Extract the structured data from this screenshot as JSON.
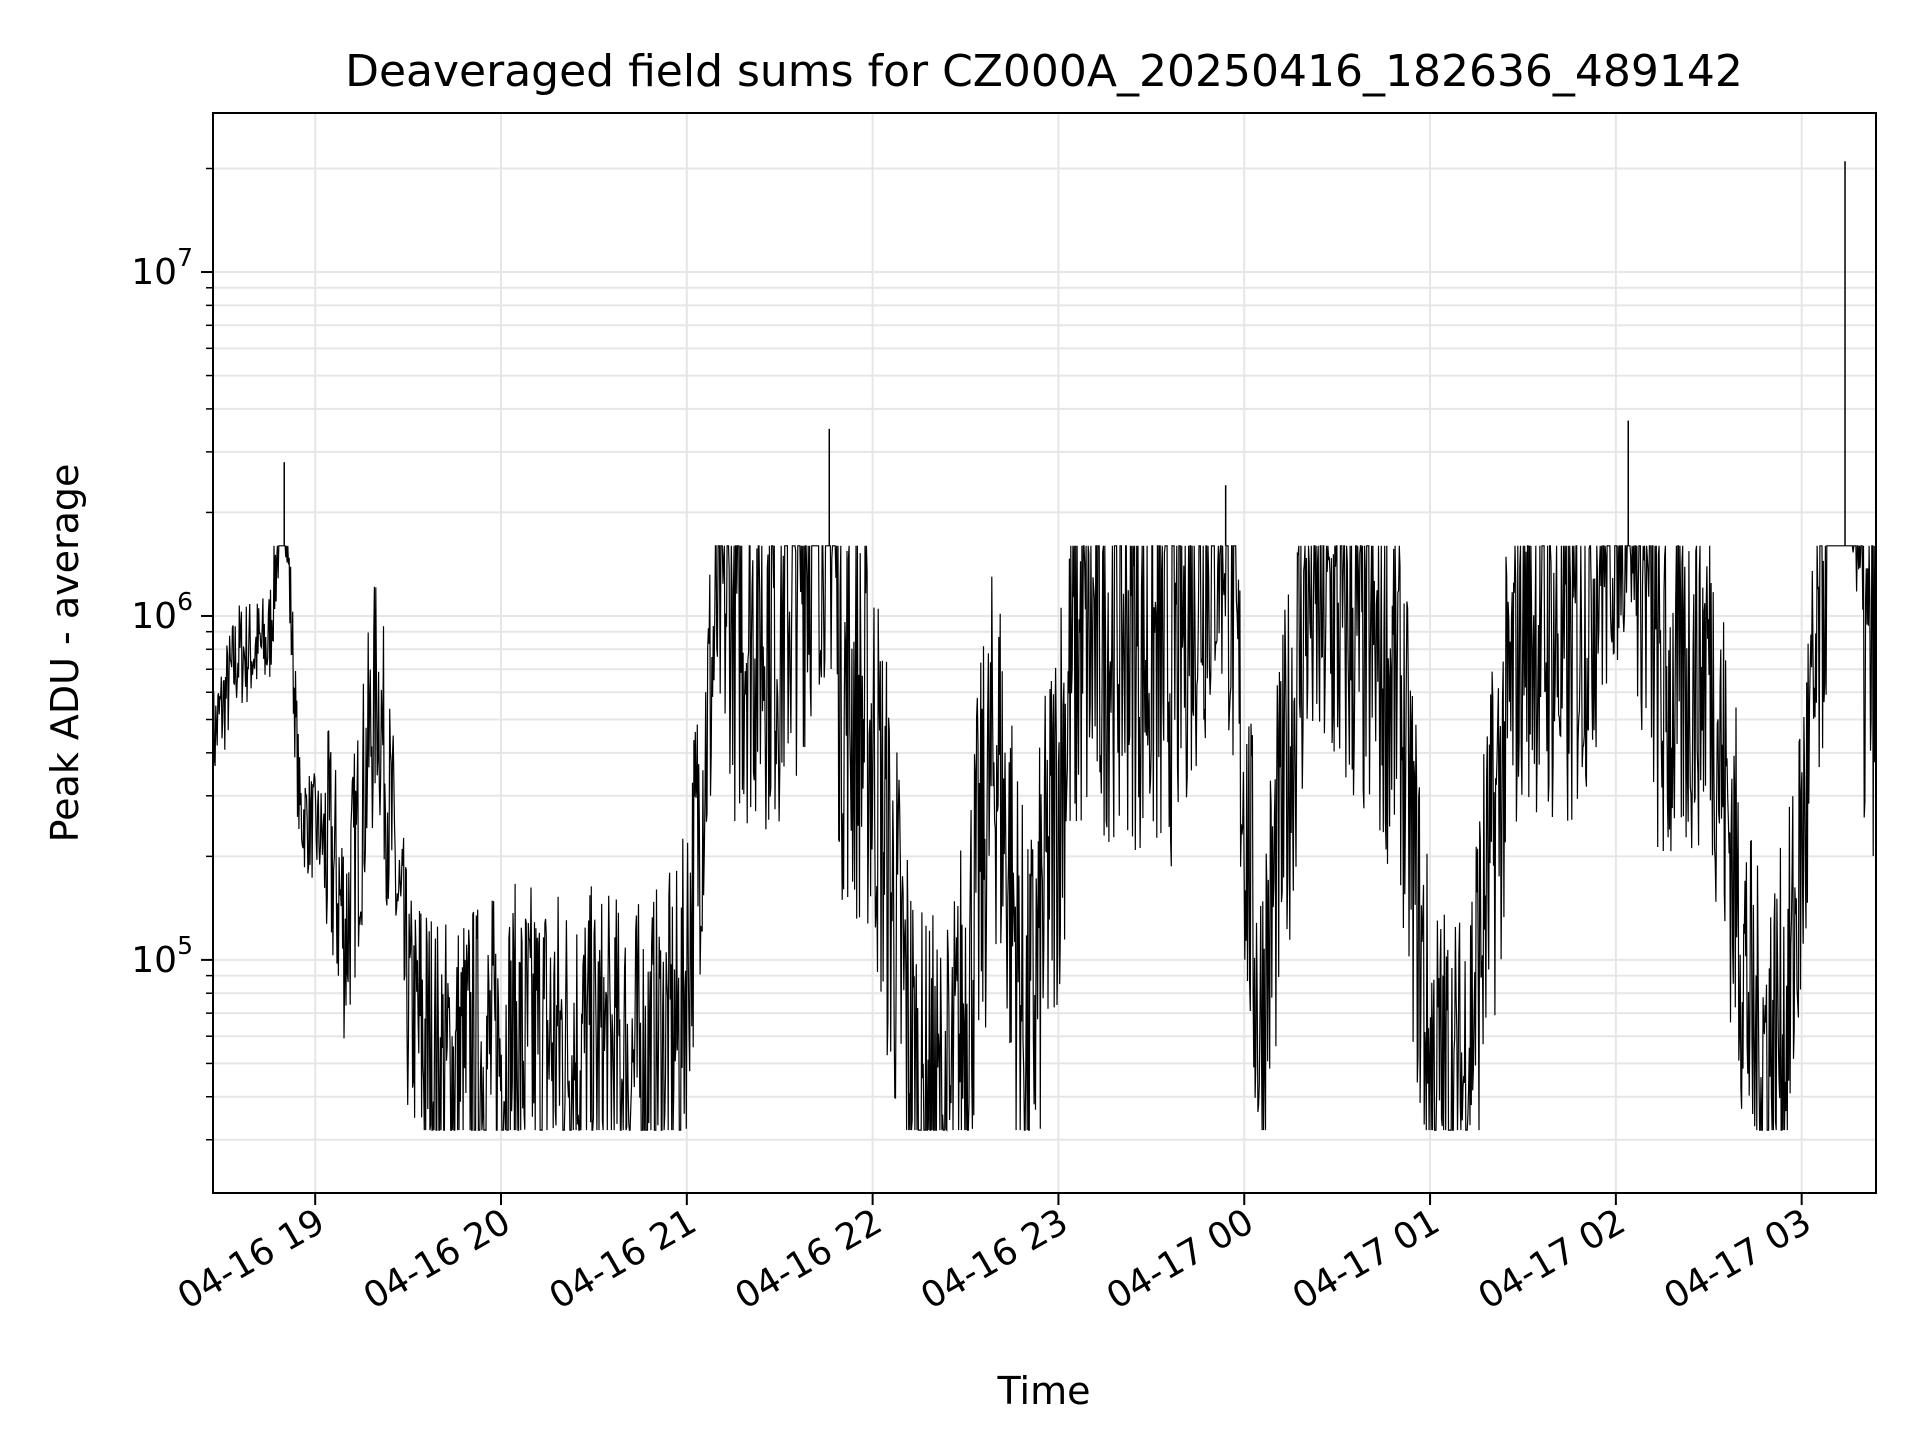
{
  "chart_data": {
    "type": "line",
    "title": "Deaveraged field sums for CZ000A_20250416_182636_489142",
    "xlabel": "Time",
    "ylabel": "Peak ADU - average",
    "yscale": "log",
    "grid": true,
    "line_color": "#000000",
    "grid_color": "#e6e6e6",
    "xlim": [
      "2025-04-16 18:27",
      "2025-04-17 03:24"
    ],
    "ylim": [
      21000,
      29000000
    ],
    "x_ticks": [
      "04-16 19",
      "04-16 20",
      "04-16 21",
      "04-16 22",
      "04-16 23",
      "04-17 00",
      "04-17 01",
      "04-17 02",
      "04-17 03"
    ],
    "y_ticks": [
      {
        "base": "10",
        "exp": "5",
        "value": 100000
      },
      {
        "base": "10",
        "exp": "6",
        "value": 1000000
      },
      {
        "base": "10",
        "exp": "7",
        "value": 10000000
      }
    ],
    "series": [
      {
        "x": [
          "2025-04-16 18:27",
          "2025-04-16 18:35",
          "2025-04-16 18:45",
          "2025-04-16 18:50",
          "2025-04-16 18:55",
          "2025-04-16 19:05",
          "2025-04-16 19:10",
          "2025-04-16 19:20",
          "2025-04-16 19:30",
          "2025-04-16 19:40",
          "2025-04-16 19:50",
          "2025-04-16 20:00",
          "2025-04-16 20:15",
          "2025-04-16 20:30",
          "2025-04-16 20:45",
          "2025-04-16 20:58",
          "2025-04-16 21:10",
          "2025-04-16 21:30",
          "2025-04-16 21:46",
          "2025-04-16 21:50",
          "2025-04-16 22:00",
          "2025-04-16 22:15",
          "2025-04-16 22:25",
          "2025-04-16 22:40",
          "2025-04-16 22:50",
          "2025-04-16 23:05",
          "2025-04-16 23:20",
          "2025-04-16 23:35",
          "2025-04-16 23:54",
          "2025-04-17 00:05",
          "2025-04-17 00:20",
          "2025-04-17 00:35",
          "2025-04-17 00:50",
          "2025-04-17 01:00",
          "2025-04-17 01:10",
          "2025-04-17 01:30",
          "2025-04-17 01:45",
          "2025-04-17 02:04",
          "2025-04-17 02:15",
          "2025-04-17 02:30",
          "2025-04-17 02:45",
          "2025-04-17 02:55",
          "2025-04-17 03:05",
          "2025-04-17 03:14",
          "2025-04-17 03:20"
        ],
        "y": [
          450000,
          800000,
          850000,
          2800000,
          280000,
          220000,
          130000,
          700000,
          80000,
          50000,
          55000,
          60000,
          65000,
          60000,
          55000,
          70000,
          1200000,
          1100000,
          3500000,
          700000,
          500000,
          40000,
          38000,
          500000,
          60000,
          900000,
          1100000,
          800000,
          2400000,
          70000,
          1300000,
          1000000,
          700000,
          55000,
          45000,
          1200000,
          800000,
          3700000,
          600000,
          900000,
          60000,
          70000,
          750000,
          21000000,
          800000
        ]
      }
    ]
  }
}
